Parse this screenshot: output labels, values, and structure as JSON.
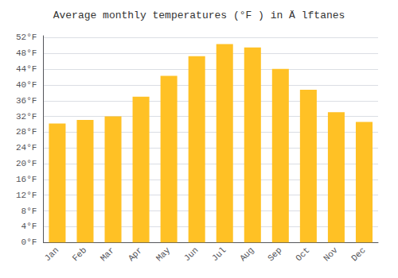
{
  "chart_data": {
    "type": "bar",
    "title": "Average monthly temperatures (°F ) in Ä lftanes",
    "categories": [
      "Jan",
      "Feb",
      "Mar",
      "Apr",
      "May",
      "Jun",
      "Jul",
      "Aug",
      "Sep",
      "Oct",
      "Nov",
      "Dec"
    ],
    "values": [
      30.2,
      31.1,
      32.0,
      37.0,
      42.3,
      47.3,
      50.4,
      49.5,
      44.1,
      38.8,
      33.1,
      30.6
    ],
    "color": "#FFC125",
    "ylim": [
      0,
      52.5
    ],
    "yticks": [
      {
        "value": 0,
        "label": "0°F"
      },
      {
        "value": 4,
        "label": "4°F"
      },
      {
        "value": 8,
        "label": "8°F"
      },
      {
        "value": 12,
        "label": "12°F"
      },
      {
        "value": 16,
        "label": "16°F"
      },
      {
        "value": 20,
        "label": "20°F"
      },
      {
        "value": 24,
        "label": "24°F"
      },
      {
        "value": 28,
        "label": "28°F"
      },
      {
        "value": 32,
        "label": "32°F"
      },
      {
        "value": 36,
        "label": "36°F"
      },
      {
        "value": 40,
        "label": "40°F"
      },
      {
        "value": 44,
        "label": "44°F"
      },
      {
        "value": 48,
        "label": "48°F"
      },
      {
        "value": 52,
        "label": "52°F"
      }
    ],
    "grid": true
  }
}
